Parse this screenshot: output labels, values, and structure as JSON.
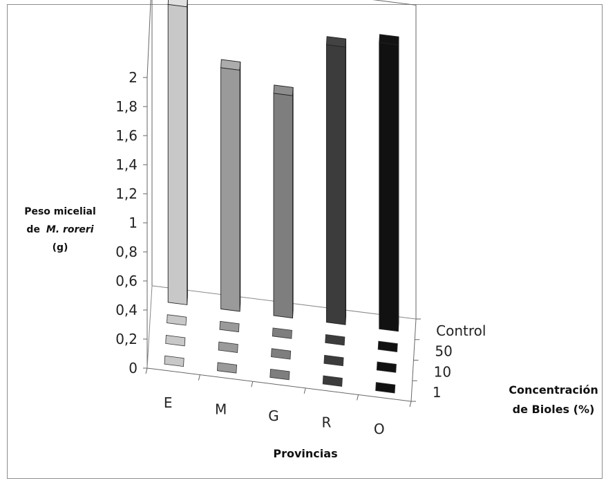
{
  "chart_data": {
    "type": "bar3d",
    "ylabel_lines": [
      "Peso micelial",
      "de",
      "M. roreri",
      "(g)"
    ],
    "xlabel": "Provincias",
    "zlabel_lines": [
      "Concentración",
      "de Bioles (%)"
    ],
    "x_categories": [
      "E",
      "M",
      "G",
      "R",
      "O"
    ],
    "z_categories": [
      "1",
      "10",
      "50",
      "Control"
    ],
    "y_ticks": [
      "0",
      "0,2",
      "0,4",
      "0,6",
      "0,8",
      "1",
      "1,2",
      "1,4",
      "1,6",
      "1,8",
      "2"
    ],
    "ylim": [
      0,
      2
    ],
    "series": [
      {
        "name": "1",
        "values": [
          0,
          0,
          0,
          0,
          0
        ]
      },
      {
        "name": "10",
        "values": [
          0,
          0,
          0,
          0,
          0
        ]
      },
      {
        "name": "50",
        "values": [
          0,
          0,
          0,
          0,
          0
        ]
      },
      {
        "name": "Control",
        "values": [
          2.05,
          1.66,
          1.53,
          1.91,
          1.97
        ]
      }
    ],
    "colors": [
      "#c8c8c8",
      "#9a9a9a",
      "#7e7e7e",
      "#3c3c3c",
      "#111111"
    ],
    "grid": false
  }
}
